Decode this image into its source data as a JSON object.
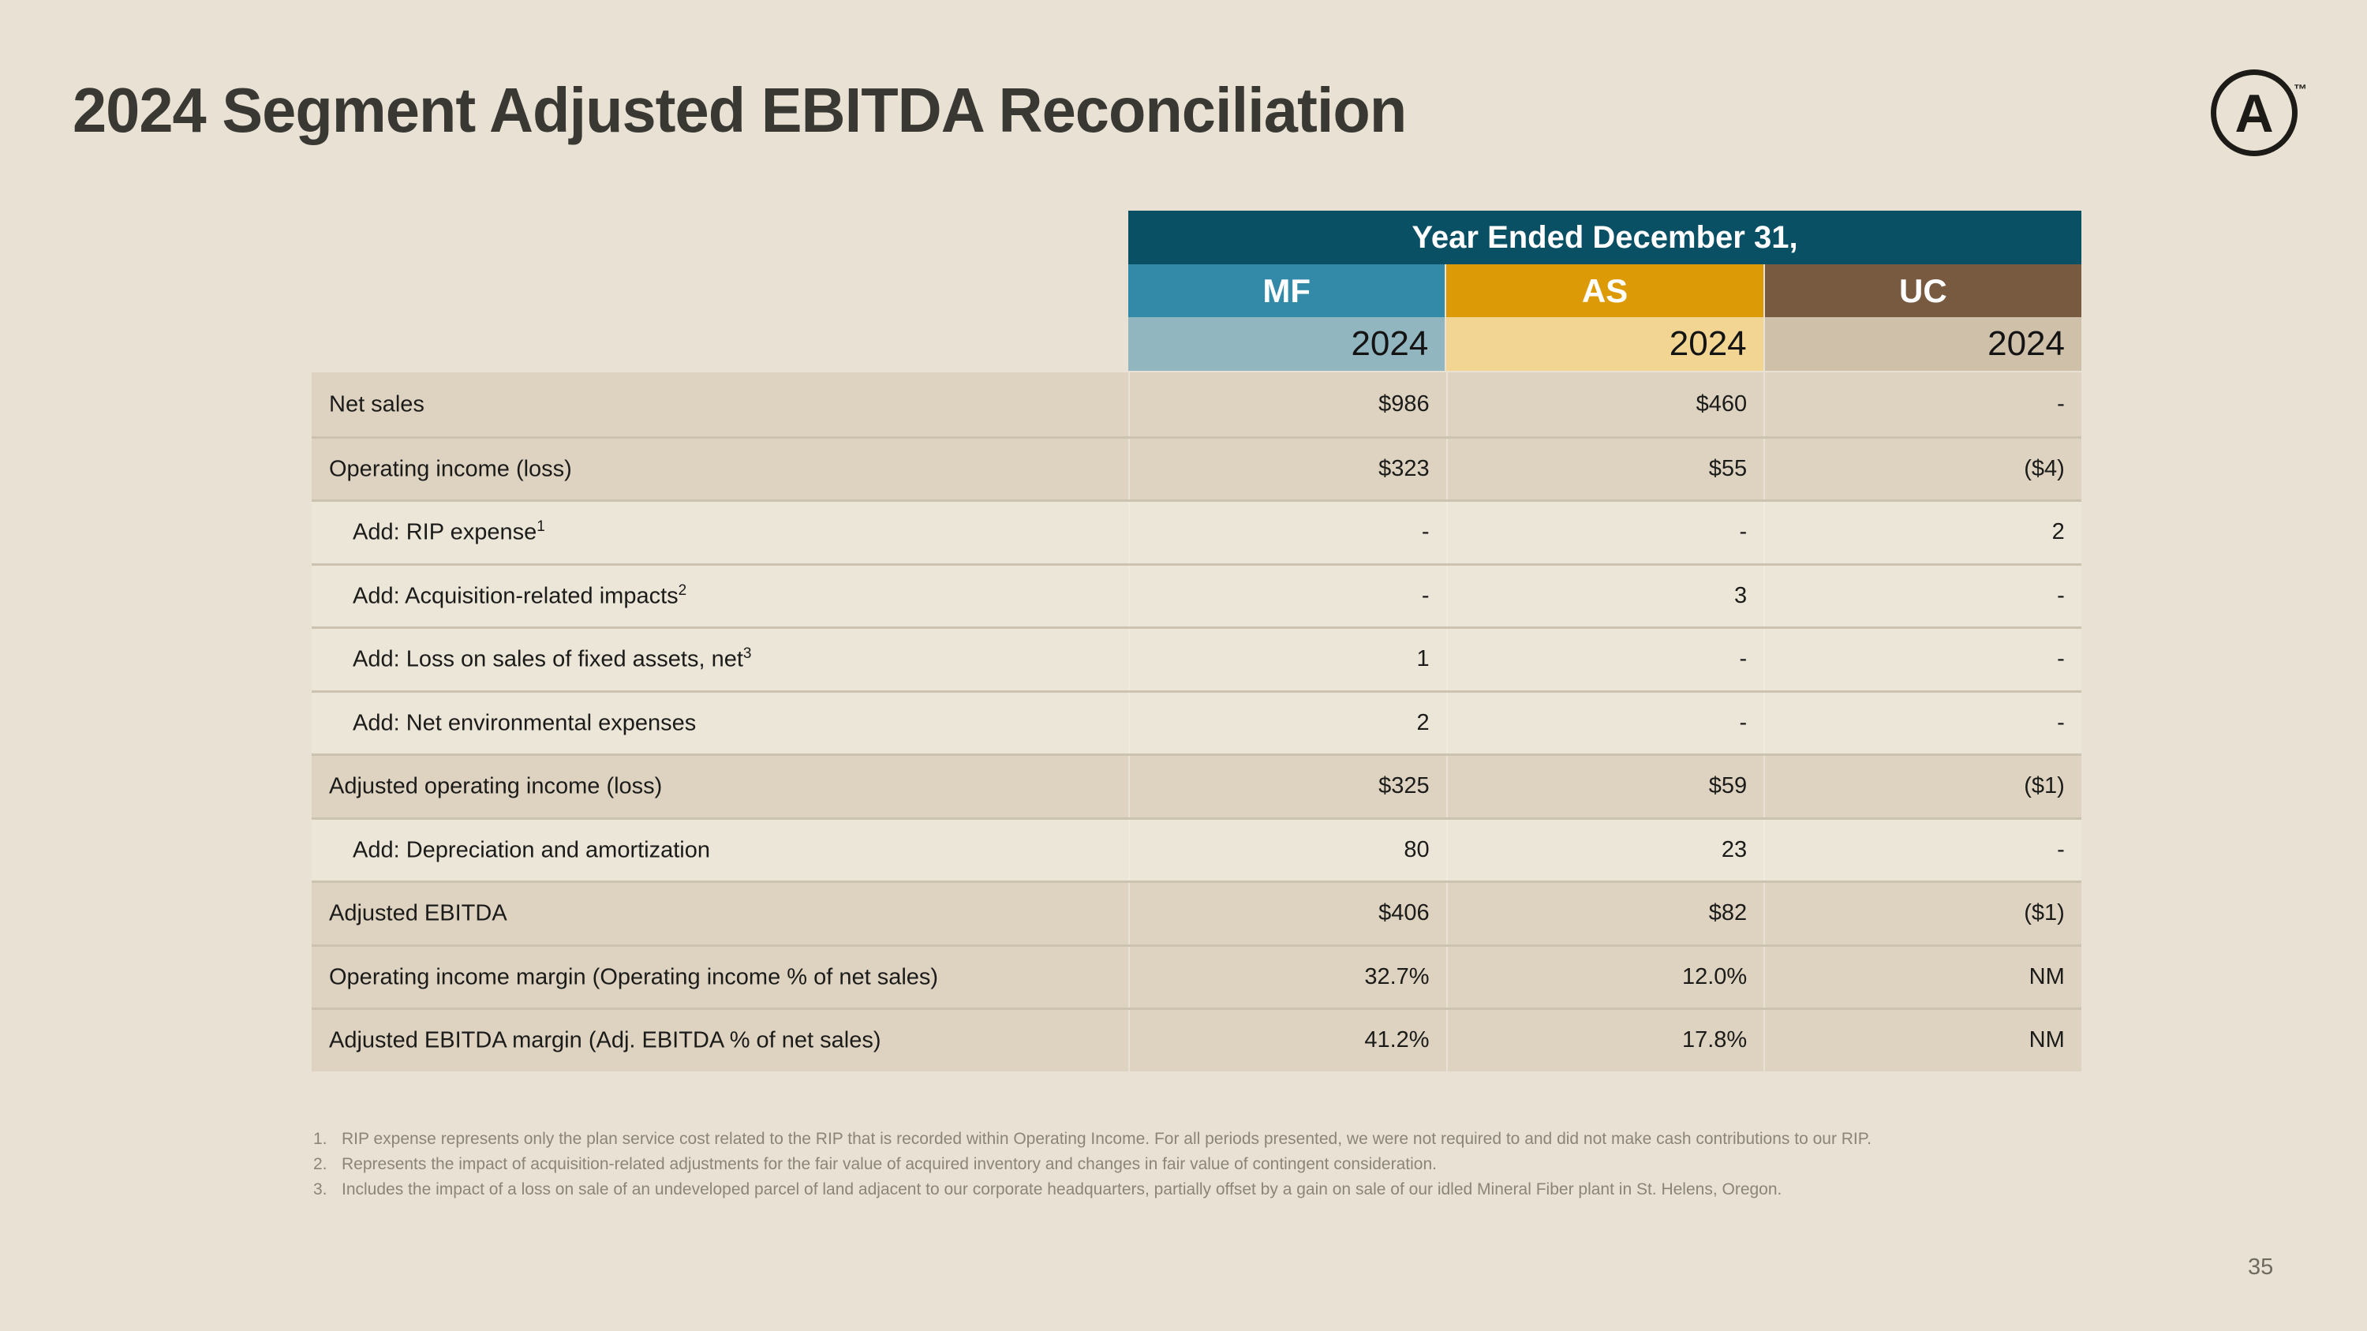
{
  "slide": {
    "title": "2024 Segment Adjusted EBITDA Reconciliation",
    "page_number": "35",
    "logo": {
      "letter": "A",
      "trademark": "™"
    }
  },
  "table": {
    "header": {
      "span_title": "Year Ended December 31,",
      "segments": [
        {
          "label": "MF",
          "year": "2024",
          "color": "#3289a8",
          "light_color": "#92b6bf"
        },
        {
          "label": "AS",
          "year": "2024",
          "color": "#dc9a07",
          "light_color": "#f3d593"
        },
        {
          "label": "UC",
          "year": "2024",
          "color": "#785a40",
          "light_color": "#cfc0aa"
        }
      ]
    },
    "rows": [
      {
        "label": "Net sales",
        "sup": "",
        "values": [
          "$986",
          "$460",
          "-"
        ]
      },
      {
        "label": "Operating income (loss)",
        "sup": "",
        "values": [
          "$323",
          "$55",
          "($4)"
        ]
      },
      {
        "label": "Add: RIP expense",
        "sup": "1",
        "values": [
          "-",
          "-",
          "2"
        ]
      },
      {
        "label": "Add: Acquisition-related impacts",
        "sup": "2",
        "values": [
          "-",
          "3",
          "-"
        ]
      },
      {
        "label": "Add: Loss on sales of fixed assets, net",
        "sup": "3",
        "values": [
          "1",
          "-",
          "-"
        ]
      },
      {
        "label": "Add: Net environmental expenses",
        "sup": "",
        "values": [
          "2",
          "-",
          "-"
        ]
      },
      {
        "label": "Adjusted operating income (loss)",
        "sup": "",
        "values": [
          "$325",
          "$59",
          "($1)"
        ]
      },
      {
        "label": "Add: Depreciation and amortization",
        "sup": "",
        "values": [
          "80",
          "23",
          "-"
        ]
      },
      {
        "label": "Adjusted EBITDA",
        "sup": "",
        "values": [
          "$406",
          "$82",
          "($1)"
        ]
      },
      {
        "label": "Operating income margin (Operating income % of net sales)",
        "sup": "",
        "values": [
          "32.7%",
          "12.0%",
          "NM"
        ]
      },
      {
        "label": "Adjusted EBITDA margin (Adj. EBITDA % of net sales)",
        "sup": "",
        "values": [
          "41.2%",
          "17.8%",
          "NM"
        ]
      }
    ]
  },
  "footnotes": [
    {
      "marker": "1.",
      "text": "RIP expense represents only the plan service cost related to the RIP that is recorded within Operating Income. For all periods presented, we were not required to and did not make cash contributions to our RIP."
    },
    {
      "marker": "2.",
      "text": "Represents the impact of acquisition-related adjustments for the fair value of acquired inventory and changes in fair value of contingent consideration."
    },
    {
      "marker": "3.",
      "text": "Includes the impact of a loss on sale of an undeveloped parcel of land adjacent to our corporate headquarters, partially offset by a gain on sale of our idled Mineral Fiber plant in St. Helens, Oregon."
    }
  ],
  "colors": {
    "background": "#e9e2d4",
    "header_teal": "#0a5065",
    "mf": "#3289a8",
    "mf_light": "#92b6bf",
    "as": "#dc9a07",
    "as_light": "#f3d593",
    "uc": "#785a40",
    "uc_light": "#cfc0aa",
    "row_dark": "#ded3c1",
    "row_light": "#ece6d8",
    "row_separator": "#cbc2af",
    "title_text": "#393833",
    "body_text": "#1b1b1a",
    "footnote_text": "#8b8579"
  }
}
